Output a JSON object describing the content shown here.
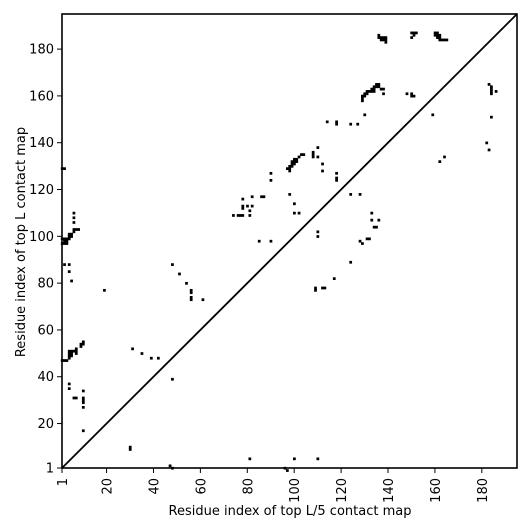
{
  "chart_data": {
    "type": "scatter",
    "xlabel": "Residue index of top L/5 contact map",
    "ylabel": "Residue index of top L contact map",
    "xlim": [
      1,
      195
    ],
    "ylim": [
      1,
      195
    ],
    "xticks": [
      1,
      20,
      40,
      60,
      80,
      100,
      120,
      140,
      160,
      180
    ],
    "yticks": [
      1,
      20,
      40,
      60,
      80,
      100,
      120,
      140,
      160,
      180
    ],
    "grid": false,
    "diagonal": true,
    "series": [
      {
        "marker_color": "#000000",
        "points": [
          [
            10,
            17
          ],
          [
            30,
            10
          ],
          [
            30,
            9
          ],
          [
            47,
            2
          ],
          [
            48,
            1
          ],
          [
            81,
            5
          ],
          [
            96,
            1
          ],
          [
            97,
            0
          ],
          [
            100,
            5
          ],
          [
            110,
            5
          ],
          [
            2,
            129
          ],
          [
            1,
            129
          ],
          [
            2,
            98
          ],
          [
            3,
            98
          ],
          [
            1,
            97
          ],
          [
            2,
            97
          ],
          [
            3,
            97
          ],
          [
            1,
            99
          ],
          [
            2,
            99
          ],
          [
            3,
            99
          ],
          [
            4,
            99
          ],
          [
            4,
            100
          ],
          [
            5,
            100
          ],
          [
            4,
            101
          ],
          [
            5,
            101
          ],
          [
            6,
            102
          ],
          [
            6,
            103
          ],
          [
            7,
            103
          ],
          [
            8,
            103
          ],
          [
            6,
            106
          ],
          [
            6,
            110
          ],
          [
            6,
            108
          ],
          [
            2,
            88
          ],
          [
            4,
            88
          ],
          [
            4,
            85
          ],
          [
            5,
            81
          ],
          [
            4,
            37
          ],
          [
            4,
            35
          ],
          [
            6,
            31
          ],
          [
            7,
            31
          ],
          [
            10,
            31
          ],
          [
            10,
            30
          ],
          [
            10,
            29
          ],
          [
            10,
            27
          ],
          [
            10,
            34
          ],
          [
            1,
            47
          ],
          [
            2,
            47
          ],
          [
            3,
            47
          ],
          [
            4,
            48
          ],
          [
            4,
            49
          ],
          [
            5,
            49
          ],
          [
            4,
            50
          ],
          [
            5,
            50
          ],
          [
            4,
            51
          ],
          [
            5,
            51
          ],
          [
            6,
            51
          ],
          [
            7,
            51
          ],
          [
            7,
            52
          ],
          [
            7,
            50
          ],
          [
            9,
            53
          ],
          [
            9,
            54
          ],
          [
            10,
            54
          ],
          [
            10,
            55
          ],
          [
            19,
            77
          ],
          [
            31,
            52
          ],
          [
            35,
            50
          ],
          [
            39,
            48
          ],
          [
            42,
            48
          ],
          [
            48,
            39
          ],
          [
            48,
            88
          ],
          [
            51,
            84
          ],
          [
            54,
            80
          ],
          [
            56,
            77
          ],
          [
            56,
            76
          ],
          [
            56,
            74
          ],
          [
            56,
            73
          ],
          [
            61,
            73
          ],
          [
            74,
            109
          ],
          [
            76,
            109
          ],
          [
            77,
            109
          ],
          [
            78,
            109
          ],
          [
            78,
            112
          ],
          [
            78,
            113
          ],
          [
            78,
            116
          ],
          [
            80,
            113
          ],
          [
            81,
            111
          ],
          [
            81,
            109
          ],
          [
            82,
            117
          ],
          [
            82,
            113
          ],
          [
            85,
            98
          ],
          [
            86,
            117
          ],
          [
            87,
            117
          ],
          [
            90,
            127
          ],
          [
            90,
            124
          ],
          [
            90,
            98
          ],
          [
            97,
            129
          ],
          [
            98,
            128
          ],
          [
            98,
            129
          ],
          [
            98,
            130
          ],
          [
            99,
            130
          ],
          [
            99,
            131
          ],
          [
            99,
            132
          ],
          [
            100,
            131
          ],
          [
            100,
            132
          ],
          [
            100,
            133
          ],
          [
            101,
            132
          ],
          [
            101,
            133
          ],
          [
            102,
            134
          ],
          [
            103,
            135
          ],
          [
            104,
            135
          ],
          [
            98,
            118
          ],
          [
            100,
            114
          ],
          [
            100,
            110
          ],
          [
            102,
            110
          ],
          [
            108,
            134
          ],
          [
            108,
            135
          ],
          [
            108,
            136
          ],
          [
            110,
            138
          ],
          [
            110,
            134
          ],
          [
            112,
            131
          ],
          [
            112,
            128
          ],
          [
            110,
            102
          ],
          [
            110,
            100
          ],
          [
            109,
            78
          ],
          [
            109,
            77
          ],
          [
            112,
            78
          ],
          [
            113,
            78
          ],
          [
            114,
            149
          ],
          [
            117,
            82
          ],
          [
            118,
            148
          ],
          [
            118,
            149
          ],
          [
            118,
            127
          ],
          [
            118,
            125
          ],
          [
            118,
            124
          ],
          [
            124,
            148
          ],
          [
            124,
            118
          ],
          [
            124,
            89
          ],
          [
            127,
            148
          ],
          [
            128,
            118
          ],
          [
            128,
            98
          ],
          [
            129,
            97
          ],
          [
            129,
            160
          ],
          [
            129,
            159
          ],
          [
            129,
            158
          ],
          [
            130,
            160
          ],
          [
            130,
            161
          ],
          [
            130,
            152
          ],
          [
            131,
            99
          ],
          [
            132,
            99
          ],
          [
            131,
            161
          ],
          [
            131,
            162
          ],
          [
            132,
            162
          ],
          [
            133,
            162
          ],
          [
            133,
            163
          ],
          [
            134,
            162
          ],
          [
            134,
            163
          ],
          [
            134,
            164
          ],
          [
            135,
            164
          ],
          [
            135,
            165
          ],
          [
            136,
            164
          ],
          [
            136,
            165
          ],
          [
            137,
            163
          ],
          [
            138,
            163
          ],
          [
            138,
            161
          ],
          [
            133,
            110
          ],
          [
            133,
            107
          ],
          [
            134,
            104
          ],
          [
            135,
            104
          ],
          [
            136,
            107
          ],
          [
            136,
            185
          ],
          [
            136,
            186
          ],
          [
            137,
            184
          ],
          [
            137,
            185
          ],
          [
            138,
            184
          ],
          [
            138,
            185
          ],
          [
            139,
            184
          ],
          [
            139,
            185
          ],
          [
            139,
            183
          ],
          [
            148,
            161
          ],
          [
            150,
            161
          ],
          [
            150,
            160
          ],
          [
            151,
            160
          ],
          [
            150,
            185
          ],
          [
            151,
            186
          ],
          [
            150,
            187
          ],
          [
            151,
            187
          ],
          [
            152,
            187
          ],
          [
            159,
            152
          ],
          [
            160,
            187
          ],
          [
            160,
            186
          ],
          [
            161,
            187
          ],
          [
            161,
            186
          ],
          [
            161,
            185
          ],
          [
            162,
            186
          ],
          [
            162,
            185
          ],
          [
            162,
            184
          ],
          [
            163,
            184
          ],
          [
            164,
            184
          ],
          [
            165,
            184
          ],
          [
            162,
            132
          ],
          [
            164,
            134
          ],
          [
            182,
            140
          ],
          [
            183,
            137
          ],
          [
            183,
            165
          ],
          [
            184,
            164
          ],
          [
            184,
            163
          ],
          [
            184,
            162
          ],
          [
            184,
            161
          ],
          [
            186,
            162
          ],
          [
            184,
            151
          ]
        ]
      }
    ]
  }
}
